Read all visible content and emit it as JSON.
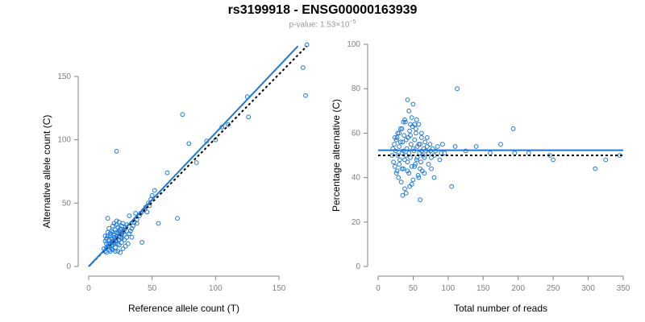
{
  "title": "rs3199918 - ENSG00000163939",
  "subtitle": {
    "prefix": "p-value: 1.53×10",
    "exponent": "−5"
  },
  "colors": {
    "point": "#1f78d8",
    "fit_line": "#1f78d8",
    "reference_line": "#000000",
    "axis": "#808080",
    "tick_label": "#808080",
    "axis_label": "#000000",
    "subtitle": "#999999"
  },
  "chart_data": [
    {
      "type": "scatter",
      "xlabel": "Reference allele count (T)",
      "ylabel": "Alternative allele count (C)",
      "xlim": [
        0,
        160
      ],
      "ylim": [
        0,
        160
      ],
      "xticks": [
        0,
        50,
        100,
        150
      ],
      "yticks": [
        0,
        50,
        100,
        150
      ],
      "grid": false,
      "fit_line": {
        "x": [
          0,
          165
        ],
        "y": [
          0,
          174
        ]
      },
      "reference_line": {
        "x": [
          0,
          172
        ],
        "y": [
          0,
          174
        ]
      },
      "points": [
        [
          13,
          12
        ],
        [
          14,
          15
        ],
        [
          12,
          14
        ],
        [
          15,
          16
        ],
        [
          16,
          18
        ],
        [
          13,
          20
        ],
        [
          14,
          22
        ],
        [
          15,
          24
        ],
        [
          17,
          26
        ],
        [
          18,
          28
        ],
        [
          16,
          30
        ],
        [
          19,
          32
        ],
        [
          20,
          34
        ],
        [
          22,
          36
        ],
        [
          15,
          38
        ],
        [
          21,
          20
        ],
        [
          18,
          14
        ],
        [
          19,
          17
        ],
        [
          20,
          19
        ],
        [
          21,
          22
        ],
        [
          22,
          24
        ],
        [
          23,
          26
        ],
        [
          24,
          28
        ],
        [
          25,
          30
        ],
        [
          26,
          32
        ],
        [
          27,
          34
        ],
        [
          17,
          12
        ],
        [
          19,
          13
        ],
        [
          21,
          15
        ],
        [
          23,
          18
        ],
        [
          24,
          21
        ],
        [
          25,
          23
        ],
        [
          26,
          25
        ],
        [
          27,
          27
        ],
        [
          28,
          29
        ],
        [
          29,
          31
        ],
        [
          30,
          33
        ],
        [
          14,
          11
        ],
        [
          16,
          13
        ],
        [
          18,
          16
        ],
        [
          20,
          18
        ],
        [
          22,
          20
        ],
        [
          24,
          17
        ],
        [
          26,
          19
        ],
        [
          28,
          21
        ],
        [
          30,
          23
        ],
        [
          32,
          26
        ],
        [
          33,
          28
        ],
        [
          34,
          30
        ],
        [
          35,
          32
        ],
        [
          36,
          35
        ],
        [
          38,
          37
        ],
        [
          40,
          40
        ],
        [
          41,
          42
        ],
        [
          43,
          44
        ],
        [
          45,
          47
        ],
        [
          47,
          50
        ],
        [
          49,
          53
        ],
        [
          50,
          56
        ],
        [
          52,
          60
        ],
        [
          27,
          14
        ],
        [
          29,
          16
        ],
        [
          31,
          18
        ],
        [
          23,
          12
        ],
        [
          25,
          11
        ],
        [
          17,
          24
        ],
        [
          19,
          27
        ],
        [
          21,
          29
        ],
        [
          15,
          27
        ],
        [
          13,
          24
        ],
        [
          22,
          33
        ],
        [
          24,
          35
        ],
        [
          18,
          22
        ],
        [
          20,
          25
        ],
        [
          16,
          21
        ],
        [
          14,
          18
        ],
        [
          21,
          12
        ],
        [
          26,
          22
        ],
        [
          28,
          25
        ],
        [
          30,
          28
        ],
        [
          19,
          20
        ],
        [
          20,
          23
        ],
        [
          22,
          27
        ],
        [
          25,
          29
        ],
        [
          23,
          31
        ],
        [
          17,
          18
        ],
        [
          16,
          16
        ],
        [
          18,
          19
        ],
        [
          24,
          24
        ],
        [
          26,
          26
        ],
        [
          42,
          19
        ],
        [
          55,
          34
        ],
        [
          62,
          74
        ],
        [
          70,
          38
        ],
        [
          74,
          120
        ],
        [
          79,
          97
        ],
        [
          85,
          82
        ],
        [
          93,
          99
        ],
        [
          100,
          100
        ],
        [
          105,
          110
        ],
        [
          110,
          112
        ],
        [
          125,
          134
        ],
        [
          126,
          118
        ],
        [
          169,
          157
        ],
        [
          171,
          135
        ],
        [
          172,
          175
        ],
        [
          22,
          91
        ],
        [
          37,
          42
        ],
        [
          44,
          45
        ],
        [
          46,
          43
        ],
        [
          48,
          48
        ],
        [
          34,
          23
        ],
        [
          32,
          40
        ],
        [
          38,
          34
        ]
      ]
    },
    {
      "type": "scatter",
      "xlabel": "Total number of reads",
      "ylabel": "Percentage alternative (C)",
      "xlim": [
        0,
        350
      ],
      "ylim": [
        0,
        100
      ],
      "xticks": [
        0,
        50,
        100,
        150,
        200,
        250,
        300,
        350
      ],
      "yticks": [
        0,
        20,
        40,
        60,
        80,
        100
      ],
      "grid": false,
      "fit_line": {
        "x": [
          0,
          350
        ],
        "y": [
          52.3,
          52.3
        ]
      },
      "reference_line": {
        "x": [
          0,
          350
        ],
        "y": [
          50,
          50
        ]
      },
      "points": [
        [
          20,
          50
        ],
        [
          21,
          53
        ],
        [
          22,
          47
        ],
        [
          23,
          55
        ],
        [
          24,
          45
        ],
        [
          25,
          52
        ],
        [
          26,
          57
        ],
        [
          27,
          43
        ],
        [
          28,
          60
        ],
        [
          29,
          40
        ],
        [
          30,
          54
        ],
        [
          31,
          48
        ],
        [
          32,
          62
        ],
        [
          33,
          38
        ],
        [
          34,
          51
        ],
        [
          35,
          56
        ],
        [
          36,
          44
        ],
        [
          37,
          59
        ],
        [
          38,
          35
        ],
        [
          39,
          65
        ],
        [
          40,
          50
        ],
        [
          41,
          53
        ],
        [
          42,
          47
        ],
        [
          43,
          58
        ],
        [
          44,
          42
        ],
        [
          45,
          61
        ],
        [
          46,
          49
        ],
        [
          47,
          55
        ],
        [
          48,
          45
        ],
        [
          49,
          63
        ],
        [
          50,
          39
        ],
        [
          51,
          52
        ],
        [
          52,
          57
        ],
        [
          53,
          46
        ],
        [
          54,
          60
        ],
        [
          55,
          48
        ],
        [
          56,
          54
        ],
        [
          57,
          41
        ],
        [
          58,
          64
        ],
        [
          59,
          51
        ],
        [
          60,
          55
        ],
        [
          61,
          47
        ],
        [
          62,
          58
        ],
        [
          63,
          43
        ],
        [
          64,
          50
        ],
        [
          65,
          53
        ],
        [
          66,
          49
        ],
        [
          67,
          56
        ],
        [
          68,
          52
        ],
        [
          70,
          54
        ],
        [
          72,
          51
        ],
        [
          74,
          55
        ],
        [
          76,
          49
        ],
        [
          78,
          53
        ],
        [
          80,
          50
        ],
        [
          82,
          52
        ],
        [
          85,
          54
        ],
        [
          88,
          48
        ],
        [
          90,
          51
        ],
        [
          92,
          55
        ],
        [
          24,
          58
        ],
        [
          26,
          42
        ],
        [
          28,
          50
        ],
        [
          30,
          46
        ],
        [
          32,
          56
        ],
        [
          34,
          44
        ],
        [
          36,
          52
        ],
        [
          38,
          48
        ],
        [
          40,
          57
        ],
        [
          42,
          43
        ],
        [
          44,
          51
        ],
        [
          46,
          59
        ],
        [
          48,
          37
        ],
        [
          50,
          53
        ],
        [
          52,
          45
        ],
        [
          54,
          62
        ],
        [
          56,
          49
        ],
        [
          58,
          55
        ],
        [
          60,
          44
        ],
        [
          62,
          52
        ],
        [
          35,
          32
        ],
        [
          40,
          33
        ],
        [
          45,
          36
        ],
        [
          60,
          30
        ],
        [
          75,
          52
        ],
        [
          80,
          40
        ],
        [
          95,
          51
        ],
        [
          105,
          36
        ],
        [
          110,
          54
        ],
        [
          113,
          80
        ],
        [
          125,
          52
        ],
        [
          140,
          54
        ],
        [
          160,
          51
        ],
        [
          175,
          55
        ],
        [
          193,
          62
        ],
        [
          195,
          51
        ],
        [
          215,
          51
        ],
        [
          245,
          50
        ],
        [
          250,
          48
        ],
        [
          310,
          44
        ],
        [
          325,
          48
        ],
        [
          345,
          50
        ],
        [
          42,
          75
        ],
        [
          50,
          73
        ],
        [
          55,
          66
        ],
        [
          48,
          67
        ],
        [
          36,
          65
        ],
        [
          44,
          70
        ],
        [
          38,
          66
        ],
        [
          52,
          64
        ],
        [
          46,
          64
        ],
        [
          34,
          62
        ],
        [
          30,
          60
        ],
        [
          27,
          58
        ],
        [
          62,
          60
        ],
        [
          70,
          58
        ],
        [
          58,
          40
        ],
        [
          66,
          42
        ],
        [
          72,
          46
        ],
        [
          76,
          44
        ]
      ]
    }
  ]
}
